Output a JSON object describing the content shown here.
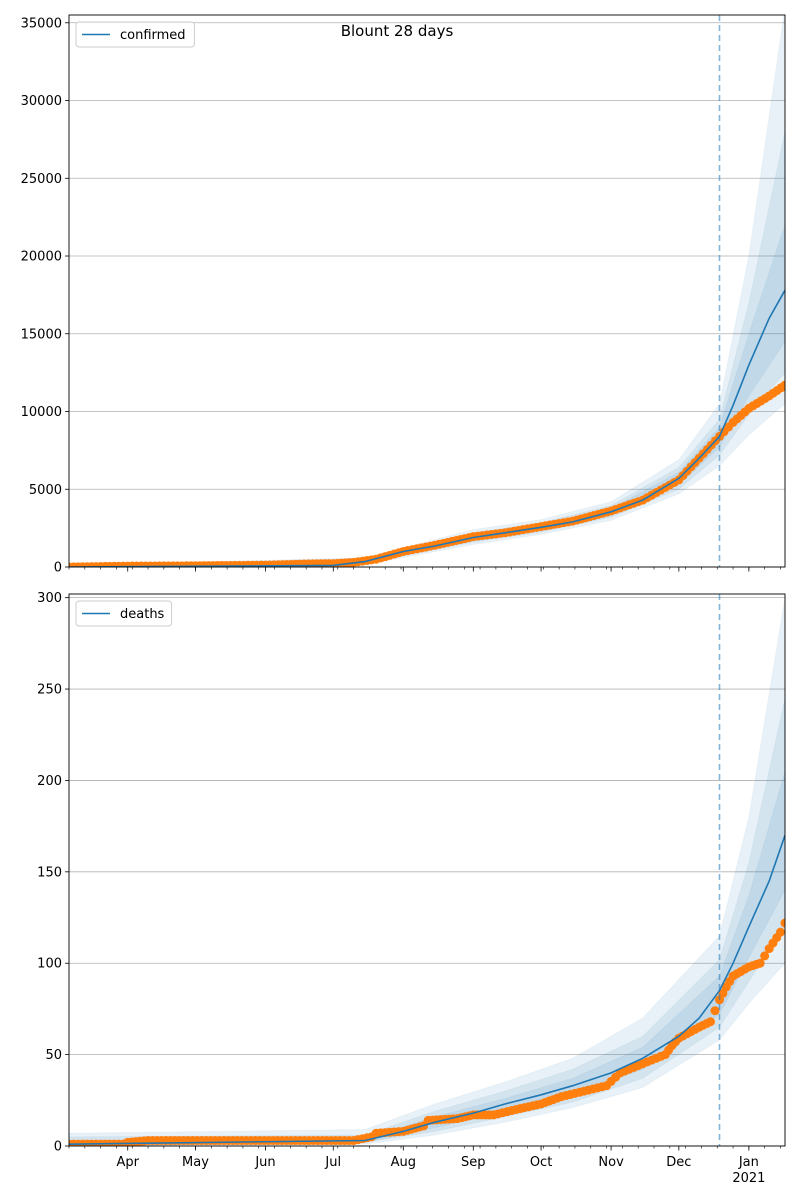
{
  "chart_data": [
    {
      "type": "line",
      "title": "Blount 28 days",
      "xlabel": "",
      "ylabel": "",
      "ylim": [
        0,
        35500
      ],
      "yticks": [
        0,
        5000,
        10000,
        15000,
        20000,
        25000,
        30000,
        35000
      ],
      "xlim": [
        "2020-03-06",
        "2021-01-17"
      ],
      "xticks": [
        {
          "date": "2020-04-01",
          "label": "Apr"
        },
        {
          "date": "2020-05-01",
          "label": "May"
        },
        {
          "date": "2020-06-01",
          "label": "Jun"
        },
        {
          "date": "2020-07-01",
          "label": "Jul"
        },
        {
          "date": "2020-08-01",
          "label": "Aug"
        },
        {
          "date": "2020-09-01",
          "label": "Sep"
        },
        {
          "date": "2020-10-01",
          "label": "Oct"
        },
        {
          "date": "2020-11-01",
          "label": "Nov"
        },
        {
          "date": "2020-12-01",
          "label": "Dec"
        },
        {
          "date": "2021-01-01",
          "label": "Jan",
          "sublabel": "2021"
        }
      ],
      "grid": "horizontal",
      "legend": {
        "placement": "top-left",
        "entries": [
          "confirmed"
        ]
      },
      "forecast_start": "2020-12-19",
      "series": [
        {
          "name": "confirmed",
          "kind": "model",
          "color": "#1f77b4",
          "points": [
            [
              "2020-03-06",
              0
            ],
            [
              "2020-07-01",
              100
            ],
            [
              "2020-07-15",
              350
            ],
            [
              "2020-08-01",
              1000
            ],
            [
              "2020-08-15",
              1350
            ],
            [
              "2020-09-01",
              1900
            ],
            [
              "2020-09-15",
              2200
            ],
            [
              "2020-10-01",
              2550
            ],
            [
              "2020-10-15",
              2900
            ],
            [
              "2020-11-01",
              3550
            ],
            [
              "2020-11-15",
              4300
            ],
            [
              "2020-12-01",
              5700
            ],
            [
              "2020-12-10",
              7000
            ],
            [
              "2020-12-19",
              8400
            ],
            [
              "2020-12-25",
              10400
            ],
            [
              "2021-01-01",
              13000
            ],
            [
              "2021-01-10",
              16000
            ],
            [
              "2021-01-17",
              17800
            ]
          ]
        },
        {
          "name": "observed",
          "kind": "observed",
          "color": "#ff7f0e",
          "points": [
            [
              "2020-03-06",
              0
            ],
            [
              "2020-04-01",
              60
            ],
            [
              "2020-05-01",
              80
            ],
            [
              "2020-06-01",
              120
            ],
            [
              "2020-06-20",
              200
            ],
            [
              "2020-07-01",
              220
            ],
            [
              "2020-07-10",
              300
            ],
            [
              "2020-07-20",
              500
            ],
            [
              "2020-08-01",
              1000
            ],
            [
              "2020-08-15",
              1400
            ],
            [
              "2020-09-01",
              1950
            ],
            [
              "2020-09-15",
              2200
            ],
            [
              "2020-10-01",
              2600
            ],
            [
              "2020-10-15",
              2950
            ],
            [
              "2020-11-01",
              3600
            ],
            [
              "2020-11-15",
              4300
            ],
            [
              "2020-12-01",
              5600
            ],
            [
              "2020-12-10",
              7000
            ],
            [
              "2020-12-19",
              8400
            ],
            [
              "2020-12-25",
              9300
            ],
            [
              "2021-01-01",
              10200
            ],
            [
              "2021-01-10",
              11000
            ],
            [
              "2021-01-17",
              11700
            ]
          ]
        }
      ],
      "bands": [
        {
          "opacity": 0.1,
          "lower": [
            [
              "2020-03-06",
              0
            ],
            [
              "2020-07-15",
              150
            ],
            [
              "2020-09-01",
              1450
            ],
            [
              "2020-10-01",
              2100
            ],
            [
              "2020-11-01",
              3000
            ],
            [
              "2020-12-01",
              4700
            ],
            [
              "2020-12-19",
              6500
            ],
            [
              "2021-01-01",
              8500
            ],
            [
              "2021-01-17",
              10500
            ]
          ],
          "upper": [
            [
              "2020-03-06",
              100
            ],
            [
              "2020-07-15",
              600
            ],
            [
              "2020-09-01",
              2400
            ],
            [
              "2020-10-01",
              3050
            ],
            [
              "2020-11-01",
              4200
            ],
            [
              "2020-12-01",
              6900
            ],
            [
              "2020-12-19",
              10500
            ],
            [
              "2021-01-01",
              20000
            ],
            [
              "2021-01-17",
              36000
            ]
          ]
        },
        {
          "opacity": 0.1,
          "lower": [
            [
              "2020-03-06",
              0
            ],
            [
              "2020-07-15",
              220
            ],
            [
              "2020-09-01",
              1600
            ],
            [
              "2020-10-01",
              2250
            ],
            [
              "2020-11-01",
              3200
            ],
            [
              "2020-12-01",
              5000
            ],
            [
              "2020-12-19",
              7200
            ],
            [
              "2021-01-01",
              9800
            ],
            [
              "2021-01-17",
              12500
            ]
          ],
          "upper": [
            [
              "2020-03-06",
              60
            ],
            [
              "2020-07-15",
              500
            ],
            [
              "2020-09-01",
              2200
            ],
            [
              "2020-10-01",
              2850
            ],
            [
              "2020-11-01",
              3950
            ],
            [
              "2020-12-01",
              6400
            ],
            [
              "2020-12-19",
              9500
            ],
            [
              "2021-01-01",
              17000
            ],
            [
              "2021-01-17",
              28000
            ]
          ]
        },
        {
          "opacity": 0.1,
          "lower": [
            [
              "2020-03-06",
              0
            ],
            [
              "2020-07-15",
              280
            ],
            [
              "2020-09-01",
              1750
            ],
            [
              "2020-10-01",
              2400
            ],
            [
              "2020-11-01",
              3350
            ],
            [
              "2020-12-01",
              5300
            ],
            [
              "2020-12-19",
              7700
            ],
            [
              "2021-01-01",
              11000
            ],
            [
              "2021-01-17",
              14500
            ]
          ],
          "upper": [
            [
              "2020-03-06",
              30
            ],
            [
              "2020-07-15",
              430
            ],
            [
              "2020-09-01",
              2050
            ],
            [
              "2020-10-01",
              2700
            ],
            [
              "2020-11-01",
              3750
            ],
            [
              "2020-12-01",
              6100
            ],
            [
              "2020-12-19",
              9000
            ],
            [
              "2021-01-01",
              15000
            ],
            [
              "2021-01-17",
              22000
            ]
          ]
        }
      ]
    },
    {
      "type": "line",
      "title": "",
      "xlabel": "",
      "ylabel": "",
      "ylim": [
        0,
        302
      ],
      "yticks": [
        0,
        50,
        100,
        150,
        200,
        250,
        300
      ],
      "xlim": [
        "2020-03-06",
        "2021-01-17"
      ],
      "xticks": [
        {
          "date": "2020-04-01",
          "label": "Apr"
        },
        {
          "date": "2020-05-01",
          "label": "May"
        },
        {
          "date": "2020-06-01",
          "label": "Jun"
        },
        {
          "date": "2020-07-01",
          "label": "Jul"
        },
        {
          "date": "2020-08-01",
          "label": "Aug"
        },
        {
          "date": "2020-09-01",
          "label": "Sep"
        },
        {
          "date": "2020-10-01",
          "label": "Oct"
        },
        {
          "date": "2020-11-01",
          "label": "Nov"
        },
        {
          "date": "2020-12-01",
          "label": "Dec"
        },
        {
          "date": "2021-01-01",
          "label": "Jan",
          "sublabel": "2021"
        }
      ],
      "grid": "horizontal",
      "legend": {
        "placement": "top-left",
        "entries": [
          "deaths"
        ]
      },
      "forecast_start": "2020-12-19",
      "series": [
        {
          "name": "deaths",
          "kind": "model",
          "color": "#1f77b4",
          "points": [
            [
              "2020-03-06",
              1
            ],
            [
              "2020-07-15",
              3
            ],
            [
              "2020-08-01",
              8
            ],
            [
              "2020-08-15",
              13
            ],
            [
              "2020-09-01",
              18
            ],
            [
              "2020-09-15",
              23
            ],
            [
              "2020-10-01",
              28
            ],
            [
              "2020-10-15",
              33
            ],
            [
              "2020-11-01",
              40
            ],
            [
              "2020-11-15",
              48
            ],
            [
              "2020-12-01",
              60
            ],
            [
              "2020-12-10",
              70
            ],
            [
              "2020-12-19",
              85
            ],
            [
              "2020-12-25",
              100
            ],
            [
              "2021-01-01",
              120
            ],
            [
              "2021-01-10",
              145
            ],
            [
              "2021-01-17",
              170
            ]
          ]
        },
        {
          "name": "observed",
          "kind": "observed",
          "color": "#ff7f0e",
          "points": [
            [
              "2020-03-06",
              1
            ],
            [
              "2020-03-30",
              1
            ],
            [
              "2020-04-01",
              2
            ],
            [
              "2020-04-10",
              3
            ],
            [
              "2020-07-10",
              3
            ],
            [
              "2020-07-18",
              5
            ],
            [
              "2020-07-20",
              7
            ],
            [
              "2020-08-01",
              8
            ],
            [
              "2020-08-10",
              11
            ],
            [
              "2020-08-12",
              14
            ],
            [
              "2020-08-25",
              15
            ],
            [
              "2020-09-01",
              17
            ],
            [
              "2020-09-10",
              17
            ],
            [
              "2020-09-20",
              20
            ],
            [
              "2020-10-01",
              23
            ],
            [
              "2020-10-10",
              27
            ],
            [
              "2020-10-20",
              30
            ],
            [
              "2020-10-30",
              33
            ],
            [
              "2020-11-05",
              40
            ],
            [
              "2020-11-15",
              45
            ],
            [
              "2020-11-25",
              50
            ],
            [
              "2020-11-28",
              55
            ],
            [
              "2020-12-01",
              59
            ],
            [
              "2020-12-10",
              65
            ],
            [
              "2020-12-15",
              68
            ],
            [
              "2020-12-19",
              80
            ],
            [
              "2020-12-22",
              87
            ],
            [
              "2020-12-25",
              93
            ],
            [
              "2021-01-01",
              98
            ],
            [
              "2021-01-06",
              100
            ],
            [
              "2021-01-10",
              108
            ],
            [
              "2021-01-15",
              117
            ],
            [
              "2021-01-17",
              122
            ]
          ]
        }
      ],
      "bands": [
        {
          "opacity": 0.1,
          "lower": [
            [
              "2020-03-06",
              0
            ],
            [
              "2020-07-15",
              1
            ],
            [
              "2020-08-15",
              6
            ],
            [
              "2020-09-15",
              13
            ],
            [
              "2020-10-15",
              21
            ],
            [
              "2020-11-15",
              32
            ],
            [
              "2020-12-19",
              58
            ],
            [
              "2021-01-01",
              78
            ],
            [
              "2021-01-17",
              100
            ]
          ],
          "upper": [
            [
              "2020-03-06",
              7
            ],
            [
              "2020-07-15",
              9
            ],
            [
              "2020-08-15",
              23
            ],
            [
              "2020-09-15",
              35
            ],
            [
              "2020-10-15",
              48
            ],
            [
              "2020-11-15",
              70
            ],
            [
              "2020-12-19",
              115
            ],
            [
              "2021-01-01",
              180
            ],
            [
              "2021-01-17",
              300
            ]
          ]
        },
        {
          "opacity": 0.1,
          "lower": [
            [
              "2020-03-06",
              0
            ],
            [
              "2020-07-15",
              2
            ],
            [
              "2020-08-15",
              8
            ],
            [
              "2020-09-15",
              16
            ],
            [
              "2020-10-15",
              24
            ],
            [
              "2020-11-15",
              37
            ],
            [
              "2020-12-19",
              65
            ],
            [
              "2021-01-01",
              90
            ],
            [
              "2021-01-17",
              120
            ]
          ],
          "upper": [
            [
              "2020-03-06",
              5
            ],
            [
              "2020-07-15",
              6
            ],
            [
              "2020-08-15",
              19
            ],
            [
              "2020-09-15",
              30
            ],
            [
              "2020-10-15",
              42
            ],
            [
              "2020-11-15",
              60
            ],
            [
              "2020-12-19",
              102
            ],
            [
              "2021-01-01",
              155
            ],
            [
              "2021-01-17",
              245
            ]
          ]
        },
        {
          "opacity": 0.1,
          "lower": [
            [
              "2020-03-06",
              0
            ],
            [
              "2020-07-15",
              2
            ],
            [
              "2020-08-15",
              10
            ],
            [
              "2020-09-15",
              19
            ],
            [
              "2020-10-15",
              28
            ],
            [
              "2020-11-15",
              42
            ],
            [
              "2020-12-19",
              72
            ],
            [
              "2021-01-01",
              103
            ],
            [
              "2021-01-17",
              140
            ]
          ],
          "upper": [
            [
              "2020-03-06",
              3
            ],
            [
              "2020-07-15",
              4
            ],
            [
              "2020-08-15",
              16
            ],
            [
              "2020-09-15",
              26
            ],
            [
              "2020-10-15",
              37
            ],
            [
              "2020-11-15",
              54
            ],
            [
              "2020-12-19",
              93
            ],
            [
              "2021-01-01",
              137
            ],
            [
              "2021-01-17",
              205
            ]
          ]
        }
      ]
    }
  ]
}
